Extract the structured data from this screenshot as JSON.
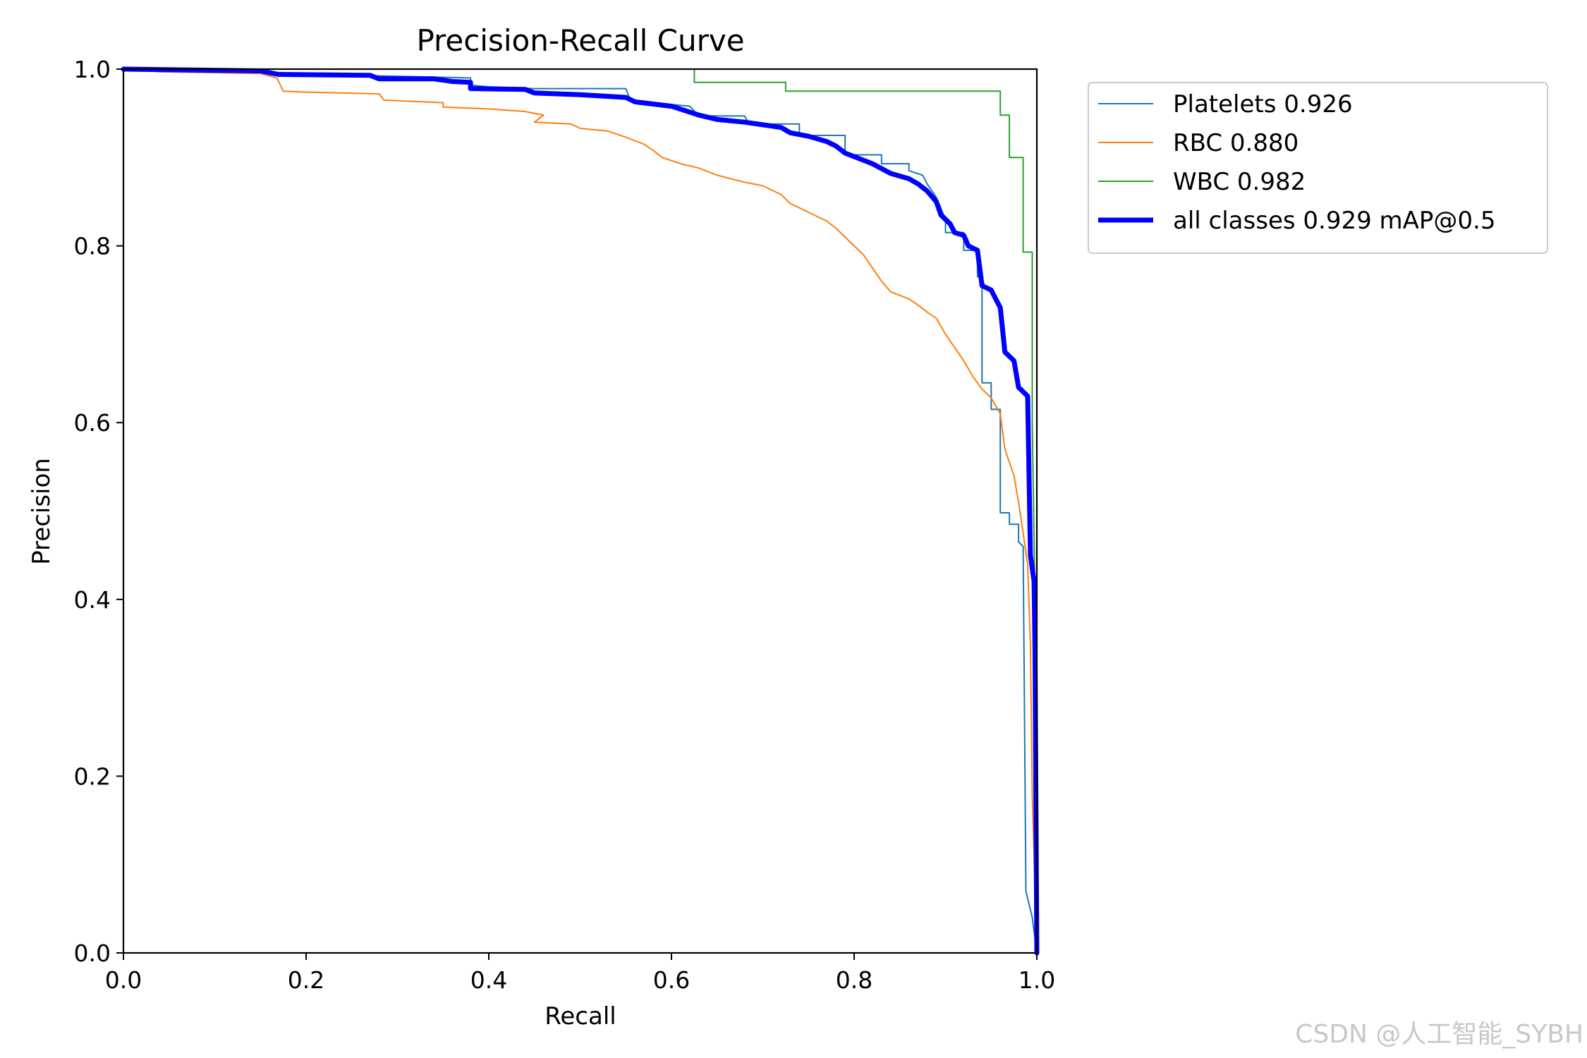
{
  "chart_data": {
    "type": "line",
    "title": "Precision-Recall Curve",
    "xlabel": "Recall",
    "ylabel": "Precision",
    "xlim": [
      0.0,
      1.0
    ],
    "ylim": [
      0.0,
      1.0
    ],
    "x_ticks": [
      "0.0",
      "0.2",
      "0.4",
      "0.6",
      "0.8",
      "1.0"
    ],
    "y_ticks": [
      "0.0",
      "0.2",
      "0.4",
      "0.6",
      "0.8",
      "1.0"
    ],
    "grid": false,
    "legend_position": "outside-top-right",
    "series": [
      {
        "name": "Platelets 0.926",
        "color": "#1f77b4",
        "points": [
          [
            0.0,
            1.0
          ],
          [
            0.04,
            1.0
          ],
          [
            0.15,
            0.998
          ],
          [
            0.17,
            0.995
          ],
          [
            0.38,
            0.99
          ],
          [
            0.38,
            0.982
          ],
          [
            0.4,
            0.98
          ],
          [
            0.45,
            0.978
          ],
          [
            0.55,
            0.978
          ],
          [
            0.555,
            0.965
          ],
          [
            0.6,
            0.96
          ],
          [
            0.62,
            0.958
          ],
          [
            0.63,
            0.947
          ],
          [
            0.68,
            0.947
          ],
          [
            0.685,
            0.938
          ],
          [
            0.74,
            0.938
          ],
          [
            0.74,
            0.925
          ],
          [
            0.79,
            0.925
          ],
          [
            0.79,
            0.903
          ],
          [
            0.83,
            0.903
          ],
          [
            0.83,
            0.893
          ],
          [
            0.86,
            0.893
          ],
          [
            0.86,
            0.885
          ],
          [
            0.875,
            0.88
          ],
          [
            0.88,
            0.87
          ],
          [
            0.89,
            0.855
          ],
          [
            0.9,
            0.83
          ],
          [
            0.9,
            0.815
          ],
          [
            0.92,
            0.815
          ],
          [
            0.92,
            0.795
          ],
          [
            0.935,
            0.795
          ],
          [
            0.935,
            0.765
          ],
          [
            0.94,
            0.765
          ],
          [
            0.94,
            0.645
          ],
          [
            0.95,
            0.645
          ],
          [
            0.95,
            0.615
          ],
          [
            0.96,
            0.615
          ],
          [
            0.96,
            0.498
          ],
          [
            0.97,
            0.498
          ],
          [
            0.97,
            0.485
          ],
          [
            0.98,
            0.485
          ],
          [
            0.98,
            0.465
          ],
          [
            0.985,
            0.46
          ],
          [
            0.988,
            0.07
          ],
          [
            0.995,
            0.04
          ],
          [
            1.0,
            0.0
          ]
        ]
      },
      {
        "name": "RBC 0.880",
        "color": "#ff7f0e",
        "points": [
          [
            0.0,
            1.0
          ],
          [
            0.04,
            0.997
          ],
          [
            0.15,
            0.995
          ],
          [
            0.168,
            0.99
          ],
          [
            0.175,
            0.975
          ],
          [
            0.2,
            0.974
          ],
          [
            0.28,
            0.972
          ],
          [
            0.285,
            0.965
          ],
          [
            0.35,
            0.962
          ],
          [
            0.35,
            0.957
          ],
          [
            0.4,
            0.955
          ],
          [
            0.44,
            0.952
          ],
          [
            0.46,
            0.948
          ],
          [
            0.45,
            0.94
          ],
          [
            0.49,
            0.938
          ],
          [
            0.5,
            0.933
          ],
          [
            0.53,
            0.93
          ],
          [
            0.55,
            0.923
          ],
          [
            0.57,
            0.915
          ],
          [
            0.58,
            0.908
          ],
          [
            0.59,
            0.9
          ],
          [
            0.61,
            0.893
          ],
          [
            0.63,
            0.888
          ],
          [
            0.65,
            0.88
          ],
          [
            0.68,
            0.872
          ],
          [
            0.7,
            0.868
          ],
          [
            0.72,
            0.858
          ],
          [
            0.73,
            0.848
          ],
          [
            0.75,
            0.838
          ],
          [
            0.77,
            0.828
          ],
          [
            0.78,
            0.82
          ],
          [
            0.8,
            0.8
          ],
          [
            0.81,
            0.79
          ],
          [
            0.82,
            0.775
          ],
          [
            0.83,
            0.76
          ],
          [
            0.84,
            0.748
          ],
          [
            0.86,
            0.74
          ],
          [
            0.87,
            0.733
          ],
          [
            0.88,
            0.725
          ],
          [
            0.89,
            0.718
          ],
          [
            0.9,
            0.7
          ],
          [
            0.91,
            0.685
          ],
          [
            0.92,
            0.67
          ],
          [
            0.93,
            0.652
          ],
          [
            0.94,
            0.638
          ],
          [
            0.95,
            0.628
          ],
          [
            0.96,
            0.61
          ],
          [
            0.965,
            0.57
          ],
          [
            0.975,
            0.54
          ],
          [
            0.98,
            0.51
          ],
          [
            0.985,
            0.475
          ],
          [
            0.99,
            0.44
          ],
          [
            0.993,
            0.35
          ],
          [
            0.995,
            0.18
          ],
          [
            1.0,
            0.0
          ]
        ]
      },
      {
        "name": "WBC 0.982",
        "color": "#2ca02c",
        "points": [
          [
            0.0,
            1.0
          ],
          [
            0.625,
            1.0
          ],
          [
            0.625,
            0.985
          ],
          [
            0.725,
            0.985
          ],
          [
            0.725,
            0.975
          ],
          [
            0.96,
            0.975
          ],
          [
            0.96,
            0.948
          ],
          [
            0.97,
            0.948
          ],
          [
            0.97,
            0.9
          ],
          [
            0.985,
            0.9
          ],
          [
            0.985,
            0.793
          ],
          [
            0.995,
            0.793
          ],
          [
            0.995,
            0.6
          ],
          [
            0.998,
            0.4
          ],
          [
            1.0,
            0.0
          ]
        ]
      },
      {
        "name": "all classes 0.929 mAP@0.5",
        "color": "#0000ff",
        "points": [
          [
            0.0,
            1.0
          ],
          [
            0.15,
            0.998
          ],
          [
            0.17,
            0.994
          ],
          [
            0.27,
            0.993
          ],
          [
            0.28,
            0.989
          ],
          [
            0.34,
            0.989
          ],
          [
            0.36,
            0.986
          ],
          [
            0.38,
            0.985
          ],
          [
            0.38,
            0.978
          ],
          [
            0.44,
            0.977
          ],
          [
            0.45,
            0.973
          ],
          [
            0.5,
            0.971
          ],
          [
            0.55,
            0.968
          ],
          [
            0.56,
            0.963
          ],
          [
            0.6,
            0.958
          ],
          [
            0.63,
            0.948
          ],
          [
            0.65,
            0.943
          ],
          [
            0.68,
            0.94
          ],
          [
            0.7,
            0.937
          ],
          [
            0.72,
            0.934
          ],
          [
            0.73,
            0.928
          ],
          [
            0.75,
            0.924
          ],
          [
            0.77,
            0.918
          ],
          [
            0.78,
            0.913
          ],
          [
            0.79,
            0.905
          ],
          [
            0.82,
            0.893
          ],
          [
            0.84,
            0.882
          ],
          [
            0.86,
            0.876
          ],
          [
            0.87,
            0.87
          ],
          [
            0.88,
            0.862
          ],
          [
            0.89,
            0.85
          ],
          [
            0.895,
            0.835
          ],
          [
            0.905,
            0.825
          ],
          [
            0.91,
            0.815
          ],
          [
            0.92,
            0.812
          ],
          [
            0.925,
            0.8
          ],
          [
            0.935,
            0.795
          ],
          [
            0.94,
            0.755
          ],
          [
            0.95,
            0.75
          ],
          [
            0.955,
            0.74
          ],
          [
            0.96,
            0.73
          ],
          [
            0.965,
            0.68
          ],
          [
            0.975,
            0.67
          ],
          [
            0.98,
            0.64
          ],
          [
            0.99,
            0.63
          ],
          [
            0.993,
            0.45
          ],
          [
            0.997,
            0.42
          ],
          [
            0.998,
            0.34
          ],
          [
            1.0,
            0.0
          ]
        ]
      }
    ]
  },
  "watermark": "CSDN @人工智能_SYBH"
}
